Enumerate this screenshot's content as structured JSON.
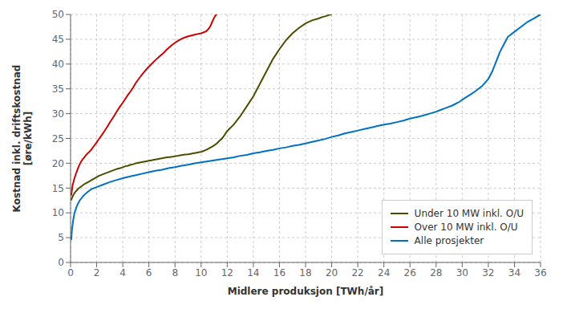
{
  "chart_data": {
    "type": "line",
    "title": "",
    "xlabel": "Midlere produksjon [TWh/år]",
    "ylabel": "Kostnad inkl. driftskostnad\n[øre/kWh]",
    "xlim": [
      0,
      36
    ],
    "ylim": [
      0,
      50
    ],
    "xticks": [
      0,
      2,
      4,
      6,
      8,
      10,
      12,
      14,
      16,
      18,
      20,
      22,
      24,
      26,
      28,
      30,
      32,
      34,
      36
    ],
    "yticks": [
      0,
      5,
      10,
      15,
      20,
      25,
      30,
      35,
      40,
      45,
      50
    ],
    "grid": true,
    "legend": "lower right",
    "series": [
      {
        "name": "Under 10 MW inkl. O/U",
        "color": "#4d4d00",
        "x": [
          0.05,
          0.1,
          0.2,
          0.3,
          0.4,
          0.5,
          0.6,
          0.7,
          0.8,
          0.9,
          1.0,
          1.2,
          1.4,
          1.6,
          1.8,
          2.0,
          2.2,
          2.4,
          2.6,
          2.8,
          3.0,
          3.2,
          3.4,
          3.6,
          3.8,
          4.0,
          4.2,
          4.4,
          4.6,
          4.8,
          5.0,
          5.2,
          5.4,
          5.6,
          5.8,
          6.0,
          6.2,
          6.4,
          6.6,
          6.8,
          7.0,
          7.2,
          7.4,
          7.6,
          7.8,
          8.0,
          8.2,
          8.4,
          8.6,
          8.8,
          9.0,
          9.2,
          9.4,
          9.6,
          9.8,
          10.0,
          10.2,
          10.4,
          10.6,
          10.8,
          11.0,
          11.2,
          11.4,
          11.6,
          11.8,
          12.0,
          12.5,
          13.0,
          13.5,
          14.0,
          14.5,
          15.0,
          15.5,
          16.0,
          16.5,
          17.0,
          17.5,
          18.0,
          18.5,
          19.0,
          19.3,
          19.6,
          19.8,
          20.0
        ],
        "values": [
          12.5,
          13.0,
          13.5,
          14.0,
          14.3,
          14.6,
          14.9,
          15.1,
          15.3,
          15.5,
          15.7,
          16.0,
          16.3,
          16.6,
          16.9,
          17.2,
          17.5,
          17.7,
          17.9,
          18.1,
          18.3,
          18.5,
          18.7,
          18.9,
          19.0,
          19.2,
          19.4,
          19.5,
          19.7,
          19.8,
          20.0,
          20.1,
          20.2,
          20.3,
          20.4,
          20.5,
          20.6,
          20.7,
          20.8,
          20.9,
          21.0,
          21.1,
          21.2,
          21.25,
          21.3,
          21.4,
          21.5,
          21.6,
          21.7,
          21.75,
          21.8,
          21.9,
          22.0,
          22.1,
          22.2,
          22.3,
          22.5,
          22.7,
          23.0,
          23.3,
          23.6,
          24.0,
          24.5,
          25.0,
          25.7,
          26.5,
          27.8,
          29.5,
          31.5,
          33.5,
          36.0,
          38.5,
          41.0,
          43.0,
          44.8,
          46.2,
          47.3,
          48.2,
          48.8,
          49.2,
          49.5,
          49.7,
          49.9,
          50.0
        ]
      },
      {
        "name": "Over 10 MW inkl. O/U",
        "color": "#cc0000",
        "x": [
          0.05,
          0.1,
          0.15,
          0.2,
          0.3,
          0.4,
          0.5,
          0.6,
          0.7,
          0.8,
          0.9,
          1.0,
          1.2,
          1.4,
          1.6,
          1.8,
          2.0,
          2.2,
          2.4,
          2.6,
          2.8,
          3.0,
          3.2,
          3.4,
          3.6,
          3.8,
          4.0,
          4.2,
          4.4,
          4.6,
          4.8,
          5.0,
          5.3,
          5.6,
          5.9,
          6.2,
          6.5,
          6.8,
          7.1,
          7.4,
          7.7,
          8.0,
          8.3,
          8.6,
          8.9,
          9.2,
          9.5,
          9.8,
          10.0,
          10.2,
          10.4,
          10.5,
          10.6,
          10.7,
          10.75,
          10.8,
          10.85,
          10.9,
          10.95,
          11.0,
          11.05,
          11.1,
          11.2
        ],
        "values": [
          13.5,
          14.5,
          15.5,
          16.0,
          17.0,
          17.8,
          18.5,
          19.2,
          19.8,
          20.3,
          20.7,
          21.0,
          21.7,
          22.2,
          22.8,
          23.5,
          24.2,
          25.0,
          25.7,
          26.5,
          27.3,
          28.2,
          29.0,
          29.8,
          30.7,
          31.5,
          32.2,
          33.0,
          33.8,
          34.5,
          35.3,
          36.2,
          37.3,
          38.3,
          39.2,
          40.0,
          40.8,
          41.5,
          42.2,
          43.0,
          43.7,
          44.3,
          44.8,
          45.2,
          45.5,
          45.7,
          45.9,
          46.1,
          46.2,
          46.4,
          46.6,
          46.9,
          47.2,
          47.6,
          47.9,
          48.2,
          48.5,
          48.8,
          49.1,
          49.3,
          49.6,
          49.8,
          50.0
        ]
      },
      {
        "name": "Alle prosjekter",
        "color": "#0070c0",
        "x": [
          0.05,
          0.1,
          0.2,
          0.3,
          0.5,
          0.7,
          1.0,
          1.3,
          1.6,
          2.0,
          2.5,
          3.0,
          3.5,
          4.0,
          4.5,
          5.0,
          5.5,
          6.0,
          6.5,
          7.0,
          7.5,
          8.0,
          8.5,
          9.0,
          9.5,
          10.0,
          10.5,
          11.0,
          11.5,
          12.0,
          12.5,
          13.0,
          13.5,
          14.0,
          14.5,
          15.0,
          15.5,
          16.0,
          16.5,
          17.0,
          17.5,
          18.0,
          18.5,
          19.0,
          19.5,
          20.0,
          20.5,
          21.0,
          21.5,
          22.0,
          22.5,
          23.0,
          23.5,
          24.0,
          24.5,
          25.0,
          25.5,
          26.0,
          26.5,
          27.0,
          27.5,
          28.0,
          28.3,
          28.6,
          28.9,
          29.2,
          29.5,
          29.8,
          30.0,
          30.3,
          30.6,
          31.0,
          31.5,
          32.0,
          32.3,
          32.6,
          32.9,
          33.2,
          33.5,
          34.0,
          34.5,
          35.0,
          35.5,
          36.0
        ],
        "values": [
          4.5,
          6.5,
          8.5,
          10.0,
          11.5,
          12.5,
          13.5,
          14.2,
          14.8,
          15.2,
          15.7,
          16.2,
          16.6,
          17.0,
          17.3,
          17.6,
          17.9,
          18.2,
          18.5,
          18.7,
          19.0,
          19.2,
          19.5,
          19.7,
          20.0,
          20.2,
          20.4,
          20.6,
          20.8,
          21.0,
          21.2,
          21.5,
          21.7,
          22.0,
          22.2,
          22.5,
          22.7,
          23.0,
          23.2,
          23.5,
          23.7,
          24.0,
          24.3,
          24.6,
          24.9,
          25.3,
          25.6,
          26.0,
          26.3,
          26.6,
          26.9,
          27.2,
          27.5,
          27.8,
          28.0,
          28.3,
          28.6,
          29.0,
          29.3,
          29.6,
          30.0,
          30.4,
          30.7,
          31.0,
          31.3,
          31.6,
          32.0,
          32.4,
          32.8,
          33.3,
          33.8,
          34.5,
          35.5,
          37.0,
          38.5,
          40.5,
          42.5,
          44.0,
          45.5,
          46.5,
          47.5,
          48.5,
          49.2,
          50.0
        ]
      }
    ]
  }
}
